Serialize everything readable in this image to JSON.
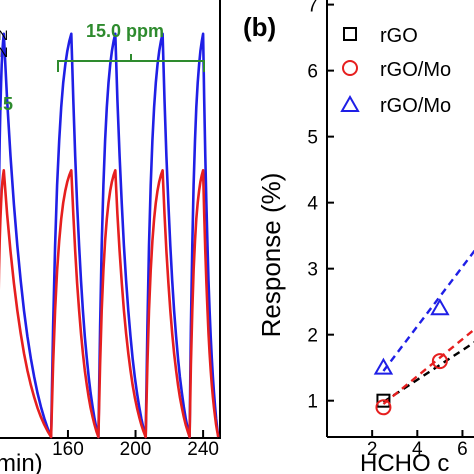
{
  "chart_data": [
    {
      "type": "line",
      "panel": "left",
      "xlabel_fragment": "min)",
      "xticks": [
        160,
        200,
        240
      ],
      "xlim": [
        118,
        250
      ],
      "ylim": [
        0,
        6.75
      ],
      "bracket_label": "15.0 ppm",
      "partial_labels": [
        ".5",
        "N",
        "N"
      ],
      "series": [
        {
          "color": "#1f1fe6",
          "peak": 6.2,
          "baseline": 0.0
        },
        {
          "color": "#e61f1f",
          "peak": 4.1,
          "baseline": 0.0
        }
      ],
      "cycles": [
        {
          "start": 118,
          "peak_at": 122,
          "end": 150
        },
        {
          "start": 150,
          "peak_at": 162,
          "end": 178
        },
        {
          "start": 178,
          "peak_at": 188,
          "end": 206
        },
        {
          "start": 206,
          "peak_at": 216,
          "end": 232
        },
        {
          "start": 232,
          "peak_at": 240,
          "end": 249
        }
      ]
    },
    {
      "type": "scatter",
      "panel": "right",
      "panel_label": "(b)",
      "ylabel": "Response (%)",
      "xlabel_fragment": "HCHO c",
      "xticks": [
        2,
        4,
        6
      ],
      "yticks": [
        1,
        2,
        3,
        4,
        5,
        6,
        7
      ],
      "xlim": [
        0,
        6.6
      ],
      "ylim": [
        0.45,
        7.1
      ],
      "legend": [
        "rGO",
        "rGO/Mo",
        "rGO/Mo"
      ],
      "series": [
        {
          "marker": "square",
          "color": "#000000",
          "x": [
            2.5
          ],
          "y": [
            1.0
          ],
          "fit": [
            [
              2.5,
              0.98
            ],
            [
              6.6,
              1.9
            ]
          ]
        },
        {
          "marker": "circle",
          "color": "#e61f1f",
          "x": [
            2.5,
            5.0
          ],
          "y": [
            0.9,
            1.6
          ],
          "fit": [
            [
              2.5,
              0.95
            ],
            [
              6.6,
              2.1
            ]
          ]
        },
        {
          "marker": "triangle",
          "color": "#1f1fe6",
          "x": [
            2.5,
            5.0
          ],
          "y": [
            1.5,
            2.4
          ],
          "fit": [
            [
              2.5,
              1.45
            ],
            [
              6.6,
              3.3
            ]
          ]
        }
      ]
    }
  ]
}
